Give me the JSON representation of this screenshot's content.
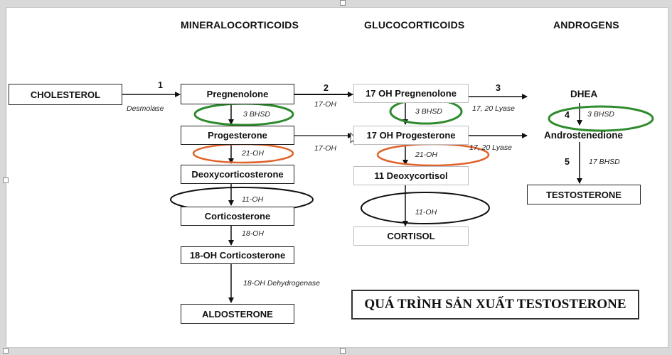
{
  "headers": {
    "mineralocorticoids": "MINERALOCORTICOIDS",
    "glucocorticoids": "GLUCOCORTICOIDS",
    "androgens": "ANDROGENS"
  },
  "compounds": {
    "cholesterol": "CHOLESTEROL",
    "pregnenolone": "Pregnenolone",
    "progesterone": "Progesterone",
    "deoxycorticosterone": "Deoxycorticosterone",
    "corticosterone": "Corticosterone",
    "oh18_corticosterone": "18-OH Corticosterone",
    "aldosterone": "ALDOSTERONE",
    "oh17_pregnenolone": "17 OH Pregnenolone",
    "oh17_progesterone": "17 OH Progesterone",
    "deoxycortisol11": "11 Deoxycortisol",
    "cortisol": "CORTISOL",
    "dhea": "DHEA",
    "androstenedione": "Androstenedione",
    "testosterone": "TESTOSTERONE"
  },
  "enzymes": {
    "desmolase": "Desmolase",
    "hsd_left": "3 BHSD",
    "oh21_left": "21-OH",
    "oh11_left": "11-OH",
    "oh18": "18-OH",
    "oh18_dehydrogenase": "18-OH Dehydrogenase",
    "oh17_top": "17-OH",
    "oh17_bottom": "17-OH",
    "hsd_mid": "3 BHSD",
    "oh21_mid": "21-OH",
    "oh11_mid": "11-OH",
    "lyase_top": "17, 20 Lyase",
    "lyase_bottom": "17, 20 Lyase",
    "hsd_right": "3 BHSD",
    "bhsd17": "17 BHSD"
  },
  "steps": {
    "s1": "1",
    "s2": "2",
    "s3": "3",
    "s4": "4",
    "s5": "5"
  },
  "title": "QUÁ TRÌNH SẢN XUẤT TESTOSTERONE",
  "colors": {
    "green_ring": "#2e8b2e",
    "orange_ring": "#e0622a",
    "black_ring": "#111111"
  }
}
